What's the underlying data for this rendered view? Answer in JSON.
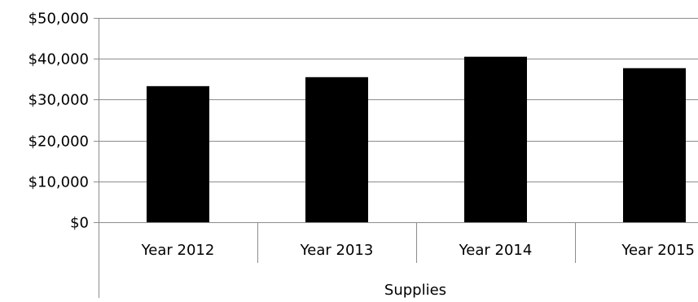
{
  "chart_data": {
    "type": "bar",
    "categories": [
      "Year 2012",
      "Year 2013",
      "Year 2014",
      "Year 2015"
    ],
    "group_label": "Supplies",
    "series": [
      {
        "values": [
          33300,
          35500,
          40500,
          37700
        ]
      }
    ],
    "y_ticks": [
      "$0",
      "$10,000",
      "$20,000",
      "$30,000",
      "$40,000",
      "$50,000"
    ],
    "ylim": [
      0,
      50000
    ],
    "grid": true,
    "legend": "none",
    "colors": {
      "bar": "#000000",
      "grid": "#8c8c8c",
      "axis": "#8c8c8c",
      "text": "#000000"
    }
  }
}
